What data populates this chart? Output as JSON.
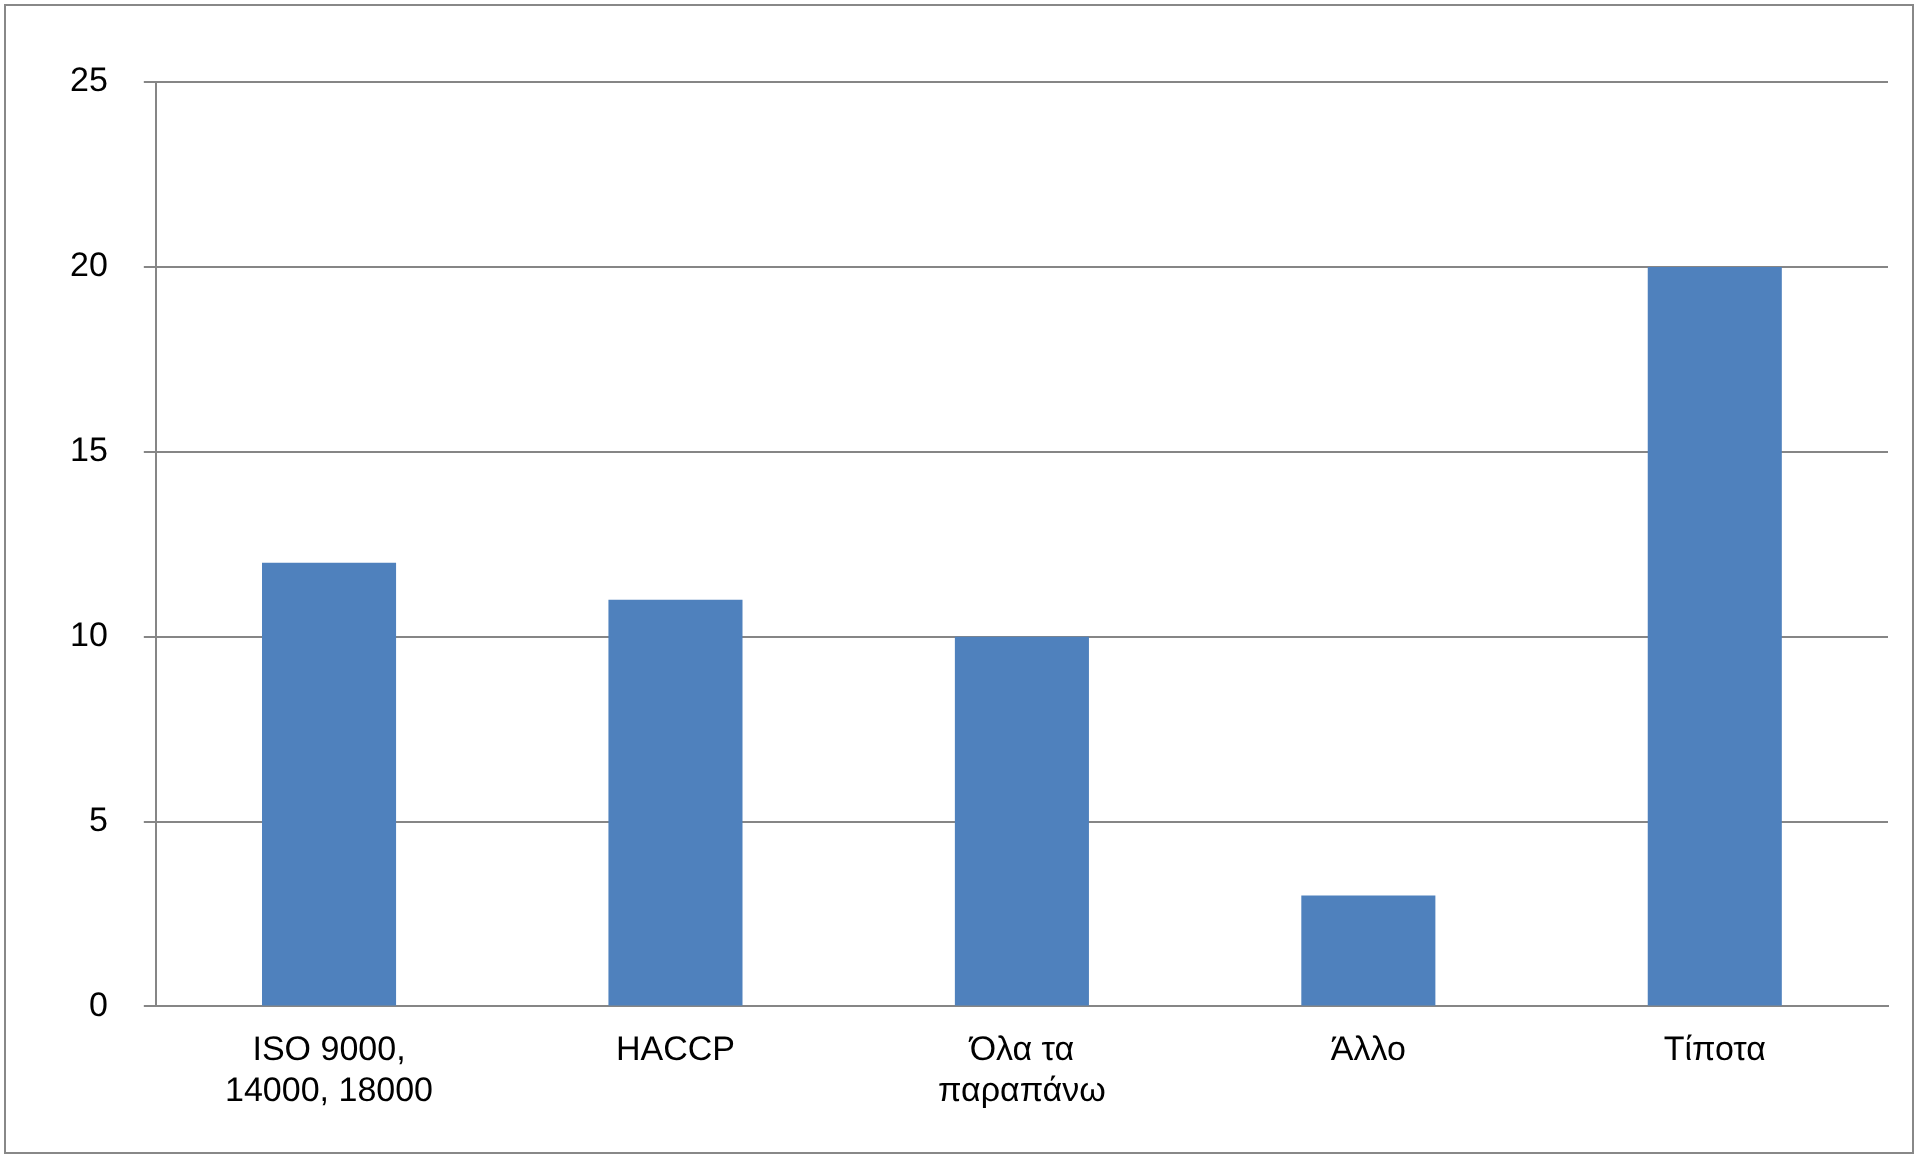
{
  "chart_data": {
    "type": "bar",
    "categories": [
      "ISO 9000, 14000, 18000",
      "HACCP",
      "Όλα τα παραπάνω",
      "Άλλο",
      "Τίποτα"
    ],
    "values": [
      12,
      11,
      10,
      3,
      20
    ],
    "color": "#4f81bd",
    "ylim": [
      0,
      25
    ],
    "yticks": [
      0,
      5,
      10,
      15,
      20,
      25
    ],
    "grid": "y",
    "legend": false
  }
}
